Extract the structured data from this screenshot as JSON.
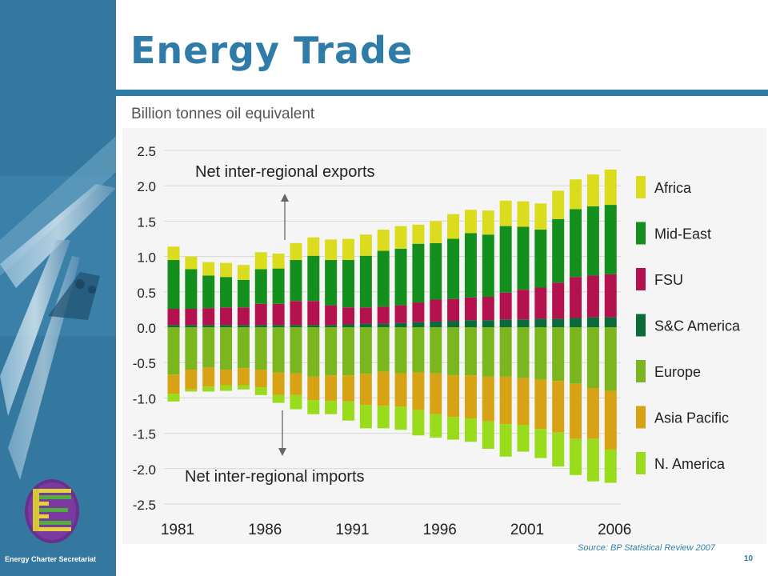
{
  "slide": {
    "title": "Energy Trade",
    "unit_label": "Billion tonnes oil equivalent",
    "source": "Source: BP Statistical Review 2007",
    "page_number": "10",
    "organization": "Energy Charter Secretariat"
  },
  "chart_data": {
    "type": "bar",
    "stacked": true,
    "ylim": [
      -2.5,
      2.5
    ],
    "yticks": [
      2.5,
      2.0,
      1.5,
      1.0,
      0.5,
      0.0,
      -0.5,
      -1.0,
      -1.5,
      -2.0,
      -2.5
    ],
    "ytick_labels": [
      "2.5",
      "2.0",
      "1.5",
      "1.0",
      "0.5",
      "0.0",
      "-0.5",
      "-1.0",
      "-1.5",
      "-2.0",
      "-2.5"
    ],
    "grid": true,
    "legend_position": "right",
    "categories": [
      "1981",
      "1982",
      "1983",
      "1984",
      "1985",
      "1986",
      "1987",
      "1988",
      "1989",
      "1990",
      "1991",
      "1992",
      "1993",
      "1994",
      "1995",
      "1996",
      "1997",
      "1998",
      "1999",
      "2000",
      "2001",
      "2002",
      "2003",
      "2004",
      "2005",
      "2006"
    ],
    "xtick_labels": [
      "1981",
      "1986",
      "1991",
      "1996",
      "2001",
      "2006"
    ],
    "annotations": {
      "exports": "Net inter-regional exports",
      "imports": "Net inter-regional imports"
    },
    "series": [
      {
        "name": "S&C America",
        "color": "#0a6a3a",
        "values": [
          0.03,
          0.03,
          0.03,
          0.03,
          0.03,
          0.03,
          0.03,
          0.03,
          0.03,
          0.03,
          0.04,
          0.05,
          0.05,
          0.06,
          0.07,
          0.08,
          0.09,
          0.1,
          0.1,
          0.11,
          0.11,
          0.12,
          0.12,
          0.13,
          0.14,
          0.14
        ]
      },
      {
        "name": "FSU",
        "color": "#b3124e",
        "values": [
          0.23,
          0.23,
          0.24,
          0.25,
          0.25,
          0.3,
          0.3,
          0.34,
          0.34,
          0.28,
          0.24,
          0.23,
          0.24,
          0.25,
          0.28,
          0.31,
          0.31,
          0.32,
          0.33,
          0.38,
          0.42,
          0.44,
          0.51,
          0.58,
          0.59,
          0.61
        ]
      },
      {
        "name": "Mid-East",
        "color": "#138f1d",
        "values": [
          0.69,
          0.56,
          0.46,
          0.43,
          0.39,
          0.49,
          0.5,
          0.58,
          0.64,
          0.64,
          0.67,
          0.73,
          0.79,
          0.8,
          0.83,
          0.8,
          0.85,
          0.91,
          0.88,
          0.94,
          0.89,
          0.82,
          0.9,
          0.96,
          0.98,
          0.98
        ]
      },
      {
        "name": "Africa",
        "color": "#dbdc1d",
        "values": [
          0.19,
          0.18,
          0.19,
          0.2,
          0.21,
          0.24,
          0.21,
          0.24,
          0.26,
          0.29,
          0.3,
          0.3,
          0.3,
          0.32,
          0.27,
          0.31,
          0.35,
          0.33,
          0.34,
          0.36,
          0.36,
          0.37,
          0.4,
          0.42,
          0.45,
          0.5
        ]
      },
      {
        "name": "Europe",
        "color": "#7bb61e",
        "values": [
          -0.67,
          -0.6,
          -0.57,
          -0.6,
          -0.58,
          -0.6,
          -0.64,
          -0.65,
          -0.7,
          -0.68,
          -0.68,
          -0.66,
          -0.63,
          -0.65,
          -0.64,
          -0.65,
          -0.68,
          -0.68,
          -0.7,
          -0.7,
          -0.72,
          -0.74,
          -0.76,
          -0.8,
          -0.86,
          -0.9
        ]
      },
      {
        "name": "Asia Pacific",
        "color": "#d7a314",
        "values": [
          -0.27,
          -0.28,
          -0.27,
          -0.22,
          -0.24,
          -0.25,
          -0.32,
          -0.31,
          -0.33,
          -0.36,
          -0.37,
          -0.44,
          -0.48,
          -0.47,
          -0.53,
          -0.58,
          -0.59,
          -0.61,
          -0.63,
          -0.67,
          -0.66,
          -0.7,
          -0.73,
          -0.78,
          -0.72,
          -0.83
        ]
      },
      {
        "name": "N. America",
        "color": "#99dc1c",
        "values": [
          -0.11,
          -0.03,
          -0.07,
          -0.08,
          -0.06,
          -0.11,
          -0.11,
          -0.2,
          -0.2,
          -0.19,
          -0.27,
          -0.33,
          -0.32,
          -0.33,
          -0.36,
          -0.33,
          -0.32,
          -0.33,
          -0.39,
          -0.46,
          -0.38,
          -0.41,
          -0.48,
          -0.51,
          -0.6,
          -0.47
        ]
      }
    ],
    "legend_order": [
      "Africa",
      "Mid-East",
      "FSU",
      "S&C America",
      "Europe",
      "Asia Pacific",
      "N. America"
    ]
  }
}
